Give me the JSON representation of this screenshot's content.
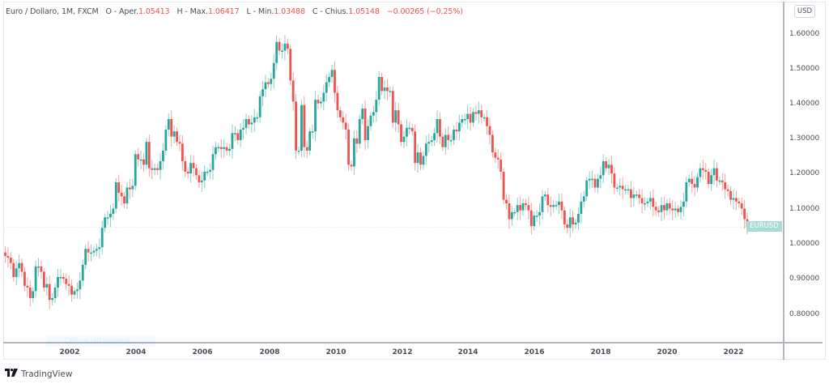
{
  "header": {
    "symbol": "Euro / Dollaro, 1M, FXCM",
    "open_label": "O - Aper.",
    "open": "1.05413",
    "high_label": "H - Max.",
    "high": "1.06417",
    "low_label": "L - Min.",
    "low": "1.03488",
    "close_label": "C - Chius.",
    "close": "1.05148",
    "change": "−0.00265 (−0.25%)"
  },
  "currency_badge": "USD",
  "price_label": "EURUSD",
  "capture_hint": "Cattura rettangolare",
  "branding": {
    "logo_mark": "TV",
    "name": "TradingView"
  },
  "colors": {
    "up": "#26a69a",
    "down": "#ef5350",
    "axis": "#b2b5be",
    "text": "#4a4d57",
    "price_label_bg": "#a7dcd6"
  },
  "chart_data": {
    "type": "candlestick",
    "title": "Euro / Dollaro, 1M, FXCM",
    "xlabel": "",
    "ylabel": "USD",
    "ylim": [
      0.75,
      1.65
    ],
    "y_ticks": [
      "1.60000",
      "1.50000",
      "1.40000",
      "1.30000",
      "1.20000",
      "1.10000",
      "1.00000",
      "0.90000",
      "0.80000"
    ],
    "x_ticks": [
      "2002",
      "2004",
      "2006",
      "2008",
      "2010",
      "2012",
      "2014",
      "2016",
      "2018",
      "2020",
      "2022"
    ],
    "start": "2000-01",
    "interval": "1M",
    "current_price": 1.05148,
    "closes": [
      0.97,
      0.965,
      0.95,
      0.91,
      0.935,
      0.95,
      0.925,
      0.885,
      0.88,
      0.85,
      0.87,
      0.94,
      0.94,
      0.925,
      0.88,
      0.89,
      0.845,
      0.85,
      0.88,
      0.91,
      0.91,
      0.905,
      0.89,
      0.885,
      0.86,
      0.87,
      0.875,
      0.9,
      0.945,
      0.99,
      0.98,
      0.98,
      0.985,
      0.99,
      0.995,
      1.05,
      1.08,
      1.08,
      1.09,
      1.105,
      1.18,
      1.15,
      1.14,
      1.12,
      1.165,
      1.16,
      1.17,
      1.26,
      1.245,
      1.245,
      1.23,
      1.295,
      1.22,
      1.215,
      1.22,
      1.215,
      1.24,
      1.27,
      1.33,
      1.36,
      1.31,
      1.325,
      1.295,
      1.29,
      1.24,
      1.21,
      1.205,
      1.235,
      1.22,
      1.2,
      1.18,
      1.185,
      1.21,
      1.21,
      1.215,
      1.26,
      1.28,
      1.28,
      1.275,
      1.28,
      1.27,
      1.275,
      1.32,
      1.32,
      1.3,
      1.33,
      1.335,
      1.36,
      1.345,
      1.35,
      1.365,
      1.365,
      1.425,
      1.445,
      1.465,
      1.46,
      1.475,
      1.52,
      1.58,
      1.555,
      1.555,
      1.575,
      1.56,
      1.47,
      1.41,
      1.27,
      1.27,
      1.4,
      1.28,
      1.27,
      1.325,
      1.325,
      1.415,
      1.405,
      1.41,
      1.435,
      1.465,
      1.48,
      1.5,
      1.435,
      1.385,
      1.365,
      1.35,
      1.33,
      1.23,
      1.225,
      1.305,
      1.29,
      1.36,
      1.39,
      1.3,
      1.34,
      1.37,
      1.38,
      1.415,
      1.48,
      1.44,
      1.45,
      1.44,
      1.44,
      1.35,
      1.385,
      1.345,
      1.295,
      1.31,
      1.335,
      1.335,
      1.325,
      1.235,
      1.265,
      1.23,
      1.255,
      1.29,
      1.295,
      1.3,
      1.32,
      1.36,
      1.31,
      1.28,
      1.315,
      1.3,
      1.3,
      1.33,
      1.325,
      1.35,
      1.36,
      1.36,
      1.375,
      1.35,
      1.38,
      1.375,
      1.385,
      1.365,
      1.365,
      1.34,
      1.315,
      1.265,
      1.25,
      1.245,
      1.21,
      1.13,
      1.12,
      1.075,
      1.095,
      1.095,
      1.115,
      1.1,
      1.12,
      1.115,
      1.1,
      1.055,
      1.085,
      1.085,
      1.095,
      1.14,
      1.145,
      1.115,
      1.11,
      1.115,
      1.115,
      1.125,
      1.1,
      1.06,
      1.05,
      1.08,
      1.06,
      1.065,
      1.09,
      1.125,
      1.14,
      1.185,
      1.19,
      1.19,
      1.165,
      1.19,
      1.2,
      1.24,
      1.22,
      1.23,
      1.205,
      1.165,
      1.165,
      1.17,
      1.16,
      1.16,
      1.16,
      1.135,
      1.145,
      1.145,
      1.135,
      1.12,
      1.12,
      1.125,
      1.135,
      1.11,
      1.1,
      1.095,
      1.115,
      1.1,
      1.12,
      1.105,
      1.1,
      1.105,
      1.095,
      1.11,
      1.125,
      1.18,
      1.19,
      1.175,
      1.165,
      1.195,
      1.22,
      1.215,
      1.21,
      1.175,
      1.2,
      1.22,
      1.185,
      1.185,
      1.18,
      1.16,
      1.155,
      1.13,
      1.135,
      1.125,
      1.12,
      1.105,
      1.075,
      1.05148
    ]
  }
}
